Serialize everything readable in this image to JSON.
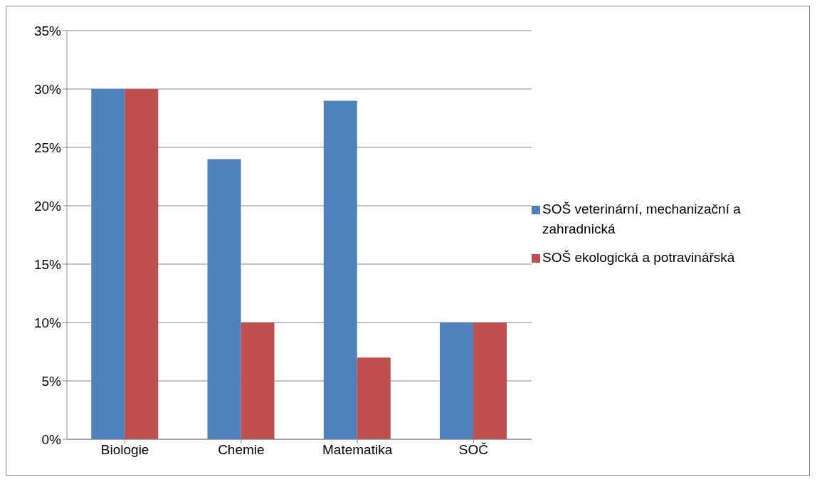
{
  "chart_data": {
    "type": "bar",
    "categories": [
      "Biologie",
      "Chemie",
      "Matematika",
      "SOČ"
    ],
    "series": [
      {
        "name": "SOŠ veterinární, mechanizační a zahradnická",
        "color": "#4f81bd",
        "values": [
          30,
          24,
          29,
          10
        ]
      },
      {
        "name": "SOŠ ekologická a potravinářská",
        "color": "#c0504d",
        "values": [
          30,
          10,
          7,
          10
        ]
      }
    ],
    "ylim": [
      0,
      35
    ],
    "yticks": [
      {
        "value": 0,
        "label": "0%"
      },
      {
        "value": 5,
        "label": "5%"
      },
      {
        "value": 10,
        "label": "10%"
      },
      {
        "value": 15,
        "label": "15%"
      },
      {
        "value": 20,
        "label": "20%"
      },
      {
        "value": 25,
        "label": "25%"
      },
      {
        "value": 30,
        "label": "30%"
      },
      {
        "value": 35,
        "label": "35%"
      }
    ],
    "grid": "y",
    "legend": "right"
  }
}
